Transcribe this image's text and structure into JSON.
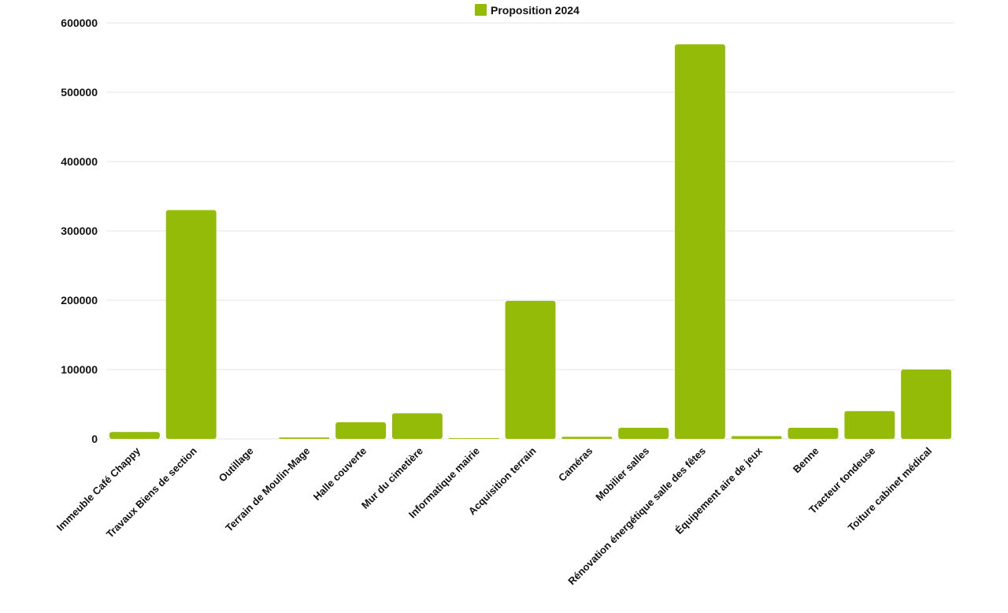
{
  "chart_data": {
    "type": "bar",
    "categories": [
      "Immeuble Café Chappy",
      "Travaux Biens de section",
      "Outillage",
      "Terrain de Moulin-Mage",
      "Halle couverte",
      "Mur du cimetière",
      "Informatique mairie",
      "Acquisition terrain",
      "Caméras",
      "Mobilier salles",
      "Rénovation énergétique salle des fêtes",
      "Équipement aire de jeux",
      "Benne",
      "Tracteur tondeuse",
      "Toiture cabinet médical"
    ],
    "series": [
      {
        "name": "Proposition 2024",
        "color": "#93bb08",
        "values": [
          10000,
          330000,
          0,
          2000,
          24000,
          37000,
          1000,
          199000,
          3000,
          16000,
          569000,
          4000,
          16000,
          40000,
          100000
        ]
      }
    ],
    "yticks": [
      "0",
      "100000",
      "200000",
      "300000",
      "400000",
      "500000",
      "600000"
    ],
    "ylim": [
      0,
      600000
    ],
    "grid": true,
    "legend_position": "top-center",
    "title": "",
    "xlabel": "",
    "ylabel": ""
  }
}
